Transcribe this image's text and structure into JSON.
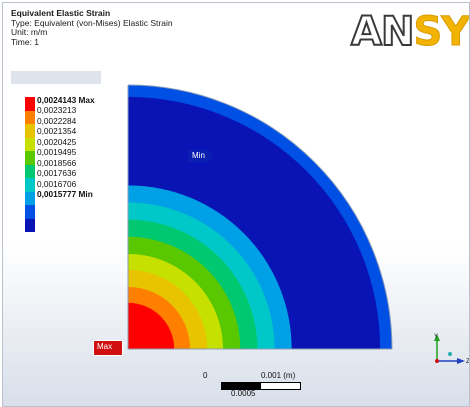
{
  "header": {
    "title": "Equivalent Elastic Strain",
    "type_line": "Type: Equivalent (von-Mises) Elastic Strain",
    "unit_line": "Unit: m/m",
    "time_line": "Time: 1"
  },
  "logo": {
    "text_left": "AN",
    "text_right": "SYS"
  },
  "legend": {
    "labels": [
      "0,0024143 Max",
      "0,0023213",
      "0,0022284",
      "0,0021354",
      "0,0020425",
      "0,0019495",
      "0,0018566",
      "0,0017636",
      "0,0016706",
      "0,0015777 Min"
    ],
    "colors": [
      "#ff0000",
      "#ff7f00",
      "#e8c400",
      "#c6e000",
      "#5ac800",
      "#00c870",
      "#00c8c8",
      "#00a0e6",
      "#0050e6",
      "#0a14b4"
    ]
  },
  "probes": {
    "min_label": "Min",
    "max_label": "Max"
  },
  "scale_bar": {
    "start": "0",
    "end": "0.001 (m)",
    "mid": "0.0005"
  },
  "triad": {
    "y_label": "Y",
    "z_label": "Z"
  }
}
